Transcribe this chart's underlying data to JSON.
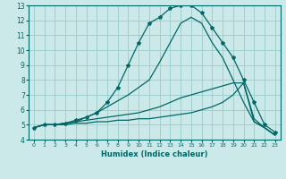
{
  "xlabel": "Humidex (Indice chaleur)",
  "ylabel": "",
  "xlim": [
    -0.5,
    23.5
  ],
  "ylim": [
    4,
    13
  ],
  "xticks": [
    0,
    1,
    2,
    3,
    4,
    5,
    6,
    7,
    8,
    9,
    10,
    11,
    12,
    13,
    14,
    15,
    16,
    17,
    18,
    19,
    20,
    21,
    22,
    23
  ],
  "yticks": [
    4,
    5,
    6,
    7,
    8,
    9,
    10,
    11,
    12,
    13
  ],
  "bg_color": "#cce9e9",
  "grid_color": "#99cccc",
  "line_color": "#006666",
  "lines": [
    {
      "x": [
        0,
        1,
        2,
        3,
        4,
        5,
        6,
        7,
        8,
        9,
        10,
        11,
        12,
        13,
        14,
        15,
        16,
        17,
        18,
        19,
        20,
        21,
        22,
        23
      ],
      "y": [
        4.8,
        5.0,
        5.0,
        5.0,
        5.1,
        5.1,
        5.2,
        5.2,
        5.3,
        5.3,
        5.4,
        5.4,
        5.5,
        5.6,
        5.7,
        5.8,
        6.0,
        6.2,
        6.5,
        7.0,
        7.8,
        5.2,
        4.8,
        4.3
      ],
      "marker": false
    },
    {
      "x": [
        0,
        1,
        2,
        3,
        4,
        5,
        6,
        7,
        8,
        9,
        10,
        11,
        12,
        13,
        14,
        15,
        16,
        17,
        18,
        19,
        20,
        21,
        22,
        23
      ],
      "y": [
        4.8,
        5.0,
        5.0,
        5.1,
        5.2,
        5.3,
        5.4,
        5.5,
        5.6,
        5.7,
        5.8,
        6.0,
        6.2,
        6.5,
        6.8,
        7.0,
        7.2,
        7.4,
        7.6,
        7.8,
        7.8,
        5.4,
        4.8,
        4.3
      ],
      "marker": false
    },
    {
      "x": [
        0,
        1,
        2,
        3,
        4,
        5,
        6,
        7,
        8,
        9,
        10,
        11,
        12,
        13,
        14,
        15,
        16,
        17,
        18,
        19,
        20,
        21,
        22,
        23
      ],
      "y": [
        4.8,
        5.0,
        5.0,
        5.1,
        5.2,
        5.5,
        5.8,
        6.2,
        6.6,
        7.0,
        7.5,
        8.0,
        9.2,
        10.5,
        11.8,
        12.2,
        11.8,
        10.5,
        9.5,
        8.0,
        6.5,
        5.2,
        4.8,
        4.3
      ],
      "marker": false
    },
    {
      "x": [
        0,
        1,
        2,
        3,
        4,
        5,
        6,
        7,
        8,
        9,
        10,
        11,
        12,
        13,
        14,
        15,
        16,
        17,
        18,
        19,
        20,
        21,
        22,
        23
      ],
      "y": [
        4.8,
        5.0,
        5.0,
        5.1,
        5.3,
        5.5,
        5.8,
        6.5,
        7.5,
        9.0,
        10.5,
        11.8,
        12.2,
        12.8,
        13.0,
        13.0,
        12.5,
        11.5,
        10.5,
        9.5,
        8.0,
        6.5,
        5.0,
        4.5
      ],
      "marker": true
    }
  ]
}
